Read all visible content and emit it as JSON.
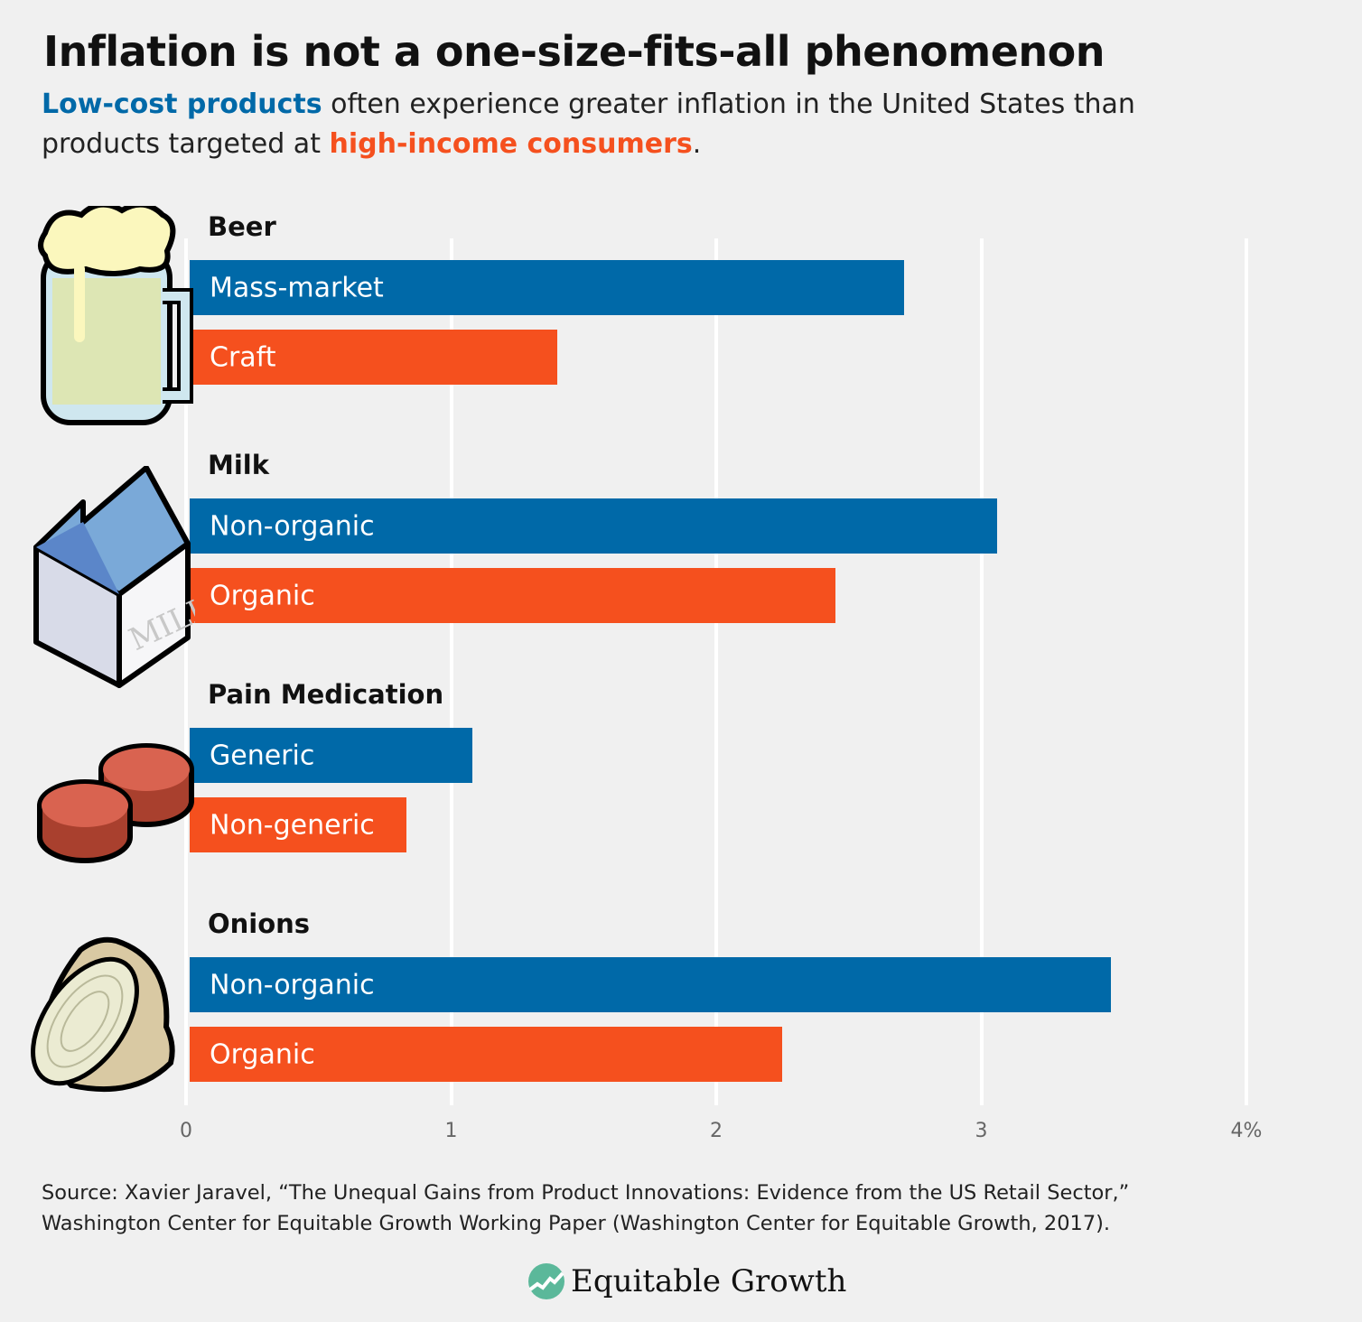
{
  "title": "Inflation is not a one-size-fits-all phenomenon",
  "subtitle": {
    "highlight_low": "Low-cost products",
    "middle": " often experience greater inflation in the United States than products targeted at ",
    "highlight_high": "high-income consumers",
    "end": "."
  },
  "colors": {
    "low": "#0069a8",
    "high": "#f5501e"
  },
  "chart_data": {
    "type": "bar",
    "orientation": "horizontal",
    "title": "Inflation is not a one-size-fits-all phenomenon",
    "xlabel": "",
    "ylabel": "",
    "xlim": [
      0,
      4
    ],
    "ticks": [
      "0",
      "1",
      "2",
      "3",
      "4%"
    ],
    "grid": true,
    "groups": [
      {
        "name": "Beer",
        "icon": "beer-mug-icon",
        "bars": [
          {
            "label": "Mass-market",
            "value": 2.71,
            "type": "low"
          },
          {
            "label": "Craft",
            "value": 1.4,
            "type": "high"
          }
        ]
      },
      {
        "name": "Milk",
        "icon": "milk-carton-icon",
        "bars": [
          {
            "label": "Non-organic",
            "value": 3.06,
            "type": "low"
          },
          {
            "label": "Organic",
            "value": 2.45,
            "type": "high"
          }
        ]
      },
      {
        "name": "Pain Medication",
        "icon": "pills-icon",
        "bars": [
          {
            "label": "Generic",
            "value": 1.08,
            "type": "low"
          },
          {
            "label": "Non-generic",
            "value": 0.83,
            "type": "high"
          }
        ]
      },
      {
        "name": "Onions",
        "icon": "onion-icon",
        "bars": [
          {
            "label": "Non-organic",
            "value": 3.49,
            "type": "low"
          },
          {
            "label": "Organic",
            "value": 2.25,
            "type": "high"
          }
        ]
      }
    ]
  },
  "milk_icon_text": "MILK",
  "source": {
    "line1": "Source: Xavier Jaravel, “The Unequal Gains from Product Innovations: Evidence from the US Retail Sector,”",
    "line2": "Washington Center for Equitable Growth Working Paper (Washington Center for Equitable Growth, 2017)."
  },
  "logo": {
    "text": "Equitable Growth"
  }
}
